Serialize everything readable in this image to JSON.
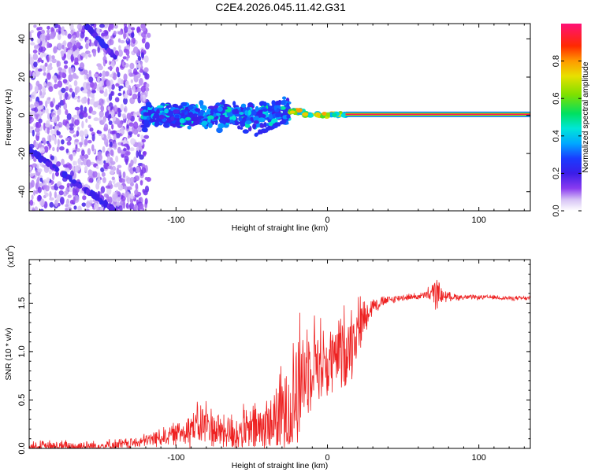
{
  "title": "C2E4.2026.045.11.42.G31",
  "chart_data": [
    {
      "type": "heatmap",
      "title": "C2E4.2026.045.11.42.G31",
      "xlabel": "Height of straight line (km)",
      "ylabel": "Frequency (Hz)",
      "xlim": [
        -197,
        134
      ],
      "ylim": [
        -50,
        48
      ],
      "xticks": [
        -100,
        0,
        100
      ],
      "yticks": [
        -40,
        -20,
        0,
        20,
        40
      ],
      "colorbar": {
        "label": "Normalized spectral amplitude",
        "range": [
          0,
          1
        ],
        "ticks": [
          "0.0",
          "0.2",
          "0.4",
          "0.6",
          "0.8"
        ]
      },
      "features": [
        {
          "name": "broadband noise",
          "x_range": [
            -197,
            -118
          ],
          "freq_range": [
            -50,
            48
          ],
          "amplitude": 0.1
        },
        {
          "name": "diagonal streak lower",
          "x_range": [
            -197,
            -140
          ],
          "freq_range": [
            -50,
            -18
          ],
          "amplitude": 0.15
        },
        {
          "name": "diagonal streak upper",
          "x_range": [
            -160,
            -140
          ],
          "freq_range": [
            30,
            48
          ],
          "amplitude": 0.15
        },
        {
          "name": "spread band",
          "x_range": [
            -122,
            -25
          ],
          "freq_range": [
            -9,
            9
          ],
          "amplitude": 0.35
        },
        {
          "name": "converging signal",
          "x_range": [
            -25,
            12
          ],
          "freq_range": [
            -2,
            3
          ],
          "amplitude": 0.75
        },
        {
          "name": "stable tone",
          "x_range": [
            12,
            134
          ],
          "freq_range": [
            -1,
            1
          ],
          "amplitude": 1.0
        }
      ]
    },
    {
      "type": "line",
      "xlabel": "Height of straight line (km)",
      "ylabel": "SNR (10 * v/v)",
      "y_scale_label": "(x10",
      "y_scale_exponent": "4",
      "xlim": [
        -197,
        134
      ],
      "ylim": [
        0,
        1.95
      ],
      "xticks": [
        -100,
        0,
        100
      ],
      "yticks": [
        "0.0",
        "0.5",
        "1.0",
        "1.5"
      ],
      "series": [
        {
          "name": "SNR",
          "color": "#ee2222",
          "x": [
            -197,
            -160,
            -140,
            -125,
            -115,
            -100,
            -90,
            -80,
            -75,
            -70,
            -60,
            -50,
            -40,
            -35,
            -30,
            -25,
            -20,
            -15,
            -10,
            -5,
            0,
            5,
            10,
            15,
            20,
            25,
            30,
            40,
            50,
            60,
            65,
            70,
            72,
            75,
            80,
            90,
            100,
            110,
            120,
            134
          ],
          "values": [
            0.01,
            0.02,
            0.03,
            0.06,
            0.1,
            0.15,
            0.22,
            0.25,
            0.2,
            0.18,
            0.15,
            0.18,
            0.22,
            0.28,
            0.35,
            0.45,
            0.6,
            0.8,
            0.95,
            0.9,
            0.85,
            0.95,
            1.0,
            1.1,
            1.25,
            1.38,
            1.48,
            1.53,
            1.56,
            1.57,
            1.58,
            1.6,
            1.62,
            1.58,
            1.57,
            1.56,
            1.56,
            1.56,
            1.55,
            1.55
          ],
          "fluctuation_range": [
            0.12,
            0.12,
            0.12,
            0.1,
            0.15,
            0.2,
            0.35,
            0.45,
            0.4,
            0.35,
            0.4,
            0.5,
            0.65,
            0.7,
            0.85,
            1.2,
            1.4,
            0.9,
            0.8,
            0.8,
            0.7,
            0.6,
            0.8,
            0.7,
            0.55,
            0.35,
            0.15,
            0.08,
            0.06,
            0.06,
            0.08,
            0.25,
            0.3,
            0.15,
            0.08,
            0.05,
            0.04,
            0.04,
            0.04,
            0.04
          ]
        }
      ]
    }
  ]
}
